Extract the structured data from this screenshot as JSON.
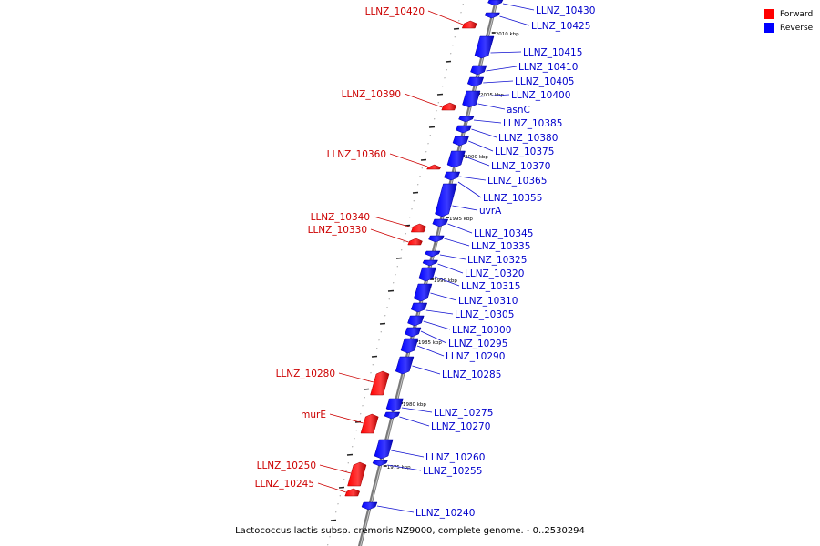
{
  "caption": "Lactococcus lactis subsp. cremoris NZ9000, complete genome. - 0..2530294",
  "legend": [
    {
      "label": "Forward",
      "color": "#ff0000"
    },
    {
      "label": "Reverse",
      "color": "#0000ff"
    }
  ],
  "colors": {
    "forward": "#ff0000",
    "reverse": "#0000ff",
    "axis": "#888888",
    "leader_fwd": "#cc0000",
    "leader_rev": "#1010d0"
  },
  "ticks": [
    "2010 kbp",
    "2005 kbp",
    "2000 kbp",
    "1995 kbp",
    "1990 kbp",
    "1985 kbp",
    "1980 kbp",
    "1975 kbp"
  ],
  "genes_reverse": [
    "LLNZ_10430",
    "LLNZ_10425",
    "LLNZ_10415",
    "LLNZ_10410",
    "LLNZ_10405",
    "LLNZ_10400",
    "asnC",
    "LLNZ_10385",
    "LLNZ_10380",
    "LLNZ_10375",
    "LLNZ_10370",
    "LLNZ_10365",
    "LLNZ_10355",
    "uvrA",
    "LLNZ_10345",
    "LLNZ_10335",
    "LLNZ_10325",
    "LLNZ_10320",
    "LLNZ_10315",
    "LLNZ_10310",
    "LLNZ_10305",
    "LLNZ_10300",
    "LLNZ_10295",
    "LLNZ_10290",
    "LLNZ_10285",
    "LLNZ_10275",
    "LLNZ_10270",
    "LLNZ_10260",
    "LLNZ_10255",
    "LLNZ_10240"
  ],
  "genes_forward": [
    "LLNZ_10420",
    "LLNZ_10390",
    "LLNZ_10360",
    "LLNZ_10340",
    "LLNZ_10330",
    "LLNZ_10280",
    "murE",
    "LLNZ_10250",
    "LLNZ_10245"
  ]
}
